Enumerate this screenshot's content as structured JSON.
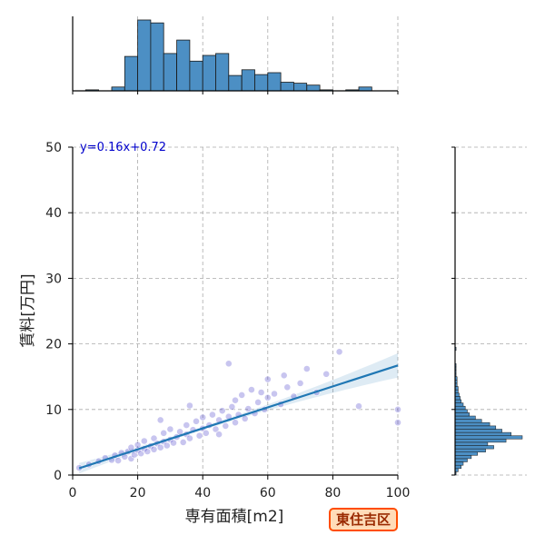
{
  "chart_data": {
    "type": "scatter",
    "xlabel": "専有面積[m2]",
    "ylabel": "賃料[万円]",
    "xlim": [
      0,
      100
    ],
    "ylim": [
      0,
      50
    ],
    "x_ticks": [
      0,
      20,
      40,
      60,
      80,
      100
    ],
    "y_ticks": [
      0,
      10,
      20,
      30,
      40,
      50
    ],
    "grid": true,
    "regression": {
      "label": "y=0.16x+0.72",
      "slope": 0.16,
      "intercept": 0.72,
      "x_range": [
        2,
        100
      ],
      "color": "#1f77b4"
    },
    "scatter_color": "#3a2fc4",
    "points": [
      [
        2,
        1.1
      ],
      [
        5,
        1.6
      ],
      [
        8,
        2.1
      ],
      [
        10,
        2.6
      ],
      [
        12,
        2.3
      ],
      [
        13,
        3.0
      ],
      [
        14,
        2.2
      ],
      [
        15,
        3.4
      ],
      [
        16,
        2.8
      ],
      [
        17,
        3.6
      ],
      [
        18,
        2.5
      ],
      [
        18,
        4.2
      ],
      [
        19,
        3.1
      ],
      [
        20,
        3.8
      ],
      [
        20,
        4.6
      ],
      [
        21,
        3.3
      ],
      [
        22,
        4.0
      ],
      [
        22,
        5.2
      ],
      [
        23,
        3.6
      ],
      [
        24,
        4.4
      ],
      [
        25,
        3.9
      ],
      [
        25,
        5.6
      ],
      [
        26,
        4.8
      ],
      [
        27,
        4.2
      ],
      [
        28,
        5.1
      ],
      [
        28,
        6.4
      ],
      [
        29,
        4.5
      ],
      [
        30,
        5.4
      ],
      [
        30,
        7.0
      ],
      [
        31,
        4.9
      ],
      [
        32,
        5.8
      ],
      [
        33,
        6.6
      ],
      [
        34,
        5.0
      ],
      [
        35,
        6.2
      ],
      [
        35,
        7.6
      ],
      [
        36,
        5.6
      ],
      [
        37,
        6.9
      ],
      [
        38,
        8.2
      ],
      [
        39,
        6.0
      ],
      [
        40,
        7.1
      ],
      [
        40,
        8.8
      ],
      [
        41,
        6.4
      ],
      [
        42,
        7.6
      ],
      [
        43,
        9.2
      ],
      [
        44,
        7.0
      ],
      [
        45,
        8.4
      ],
      [
        45,
        6.2
      ],
      [
        46,
        9.8
      ],
      [
        47,
        7.5
      ],
      [
        48,
        8.9
      ],
      [
        49,
        10.4
      ],
      [
        50,
        8.0
      ],
      [
        50,
        11.4
      ],
      [
        51,
        9.2
      ],
      [
        52,
        12.2
      ],
      [
        53,
        8.6
      ],
      [
        54,
        10.1
      ],
      [
        55,
        13.0
      ],
      [
        56,
        9.4
      ],
      [
        57,
        11.1
      ],
      [
        58,
        12.6
      ],
      [
        59,
        10.0
      ],
      [
        60,
        11.8
      ],
      [
        60,
        14.6
      ],
      [
        62,
        12.4
      ],
      [
        64,
        10.8
      ],
      [
        65,
        15.2
      ],
      [
        66,
        13.4
      ],
      [
        68,
        12.0
      ],
      [
        70,
        14.0
      ],
      [
        72,
        16.2
      ],
      [
        75,
        12.6
      ],
      [
        78,
        15.4
      ],
      [
        82,
        18.8
      ],
      [
        88,
        10.5
      ],
      [
        100,
        10.0
      ],
      [
        100,
        8.0
      ],
      [
        48,
        17.0
      ],
      [
        36,
        10.6
      ],
      [
        27,
        8.4
      ]
    ],
    "top_histogram": {
      "bin_edges": [
        0,
        4,
        8,
        12,
        16,
        20,
        24,
        28,
        32,
        36,
        40,
        44,
        48,
        52,
        56,
        60,
        64,
        68,
        72,
        76,
        80,
        84,
        88,
        92,
        96,
        100
      ],
      "counts": [
        0,
        1,
        0,
        4,
        36,
        74,
        71,
        39,
        53,
        31,
        37,
        39,
        16,
        22,
        17,
        19,
        9,
        8,
        6,
        1,
        0,
        1,
        4,
        0,
        0
      ],
      "color": "#4c8fc4"
    },
    "right_histogram": {
      "bin_edges": [
        0,
        0.5,
        1,
        1.5,
        2,
        2.5,
        3,
        3.5,
        4,
        4.5,
        5,
        5.5,
        6,
        6.5,
        7,
        7.5,
        8,
        8.5,
        9,
        9.5,
        10,
        10.5,
        11,
        11.5,
        12,
        12.5,
        13,
        13.5,
        14,
        14.5,
        15,
        15.5,
        16,
        16.5,
        17,
        17.5,
        18,
        18.5,
        19,
        19.5,
        20
      ],
      "counts": [
        1,
        3,
        6,
        8,
        12,
        16,
        22,
        30,
        38,
        32,
        50,
        66,
        55,
        46,
        40,
        34,
        26,
        20,
        14,
        12,
        10,
        8,
        6,
        5,
        4,
        3,
        3,
        2,
        2,
        2,
        1,
        1,
        1,
        1,
        0,
        0,
        0,
        0,
        1,
        0
      ],
      "color": "#4c8fc4"
    }
  },
  "badge_text": "東住吉区"
}
